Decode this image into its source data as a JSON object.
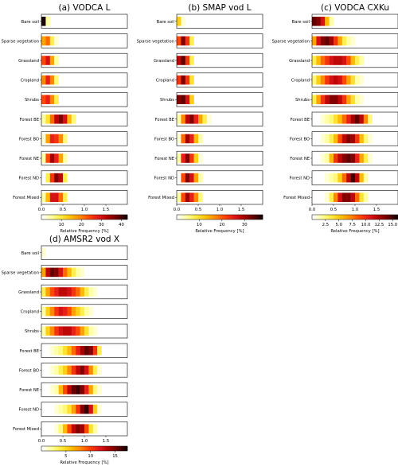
{
  "colorscale": [
    "#ffffff",
    "#ffff99",
    "#ffeb3b",
    "#ffc107",
    "#ff8c00",
    "#ff4500",
    "#e31a1c",
    "#b10000",
    "#6b0000",
    "#1a0000"
  ],
  "chart_data": [
    {
      "type": "heatmap",
      "title": "(a) VODCA L",
      "categories": [
        "Bare soil",
        "Sparse vegetation",
        "Grassland",
        "Cropland",
        "Shrubs",
        "Forest BE",
        "Forest BO",
        "Forest NE",
        "Forest ND",
        "Forest Mixed"
      ],
      "x": [
        0.05,
        0.15,
        0.25,
        0.35,
        0.45,
        0.55,
        0.65,
        0.75,
        0.85,
        0.95
      ],
      "xlim": [
        0,
        2
      ],
      "xticks": [
        "0.0",
        "0.5",
        "1.0",
        "1.5"
      ],
      "series": [
        {
          "values": [
            1.0,
            0.1,
            0.0,
            0.0,
            0.0,
            0.0,
            0.0,
            0.0,
            0.0,
            0.0
          ]
        },
        {
          "values": [
            0.4,
            0.5,
            0.2,
            0.05,
            0.0,
            0.0,
            0.0,
            0.0,
            0.0,
            0.0
          ]
        },
        {
          "values": [
            0.55,
            0.7,
            0.4,
            0.1,
            0.0,
            0.0,
            0.0,
            0.0,
            0.0,
            0.0
          ]
        },
        {
          "values": [
            0.45,
            0.65,
            0.45,
            0.15,
            0.0,
            0.0,
            0.0,
            0.0,
            0.0,
            0.0
          ]
        },
        {
          "values": [
            0.55,
            0.65,
            0.45,
            0.2,
            0.0,
            0.0,
            0.0,
            0.0,
            0.0,
            0.0
          ]
        },
        {
          "values": [
            0.1,
            0.25,
            0.5,
            0.75,
            0.85,
            0.7,
            0.35,
            0.15,
            0.0,
            0.0
          ]
        },
        {
          "values": [
            0.05,
            0.4,
            0.65,
            0.6,
            0.45,
            0.15,
            0.0,
            0.0,
            0.0,
            0.0
          ]
        },
        {
          "values": [
            0.1,
            0.55,
            0.8,
            0.65,
            0.4,
            0.1,
            0.0,
            0.0,
            0.0,
            0.0
          ]
        },
        {
          "values": [
            0.0,
            0.2,
            0.6,
            0.85,
            0.75,
            0.2,
            0.0,
            0.0,
            0.0,
            0.0
          ]
        },
        {
          "values": [
            0.1,
            0.35,
            0.7,
            0.7,
            0.5,
            0.2,
            0.0,
            0.0,
            0.0,
            0.0
          ]
        }
      ],
      "colorbar": {
        "label": "Relative Frequency [%]",
        "range": [
          0,
          43
        ],
        "ticks": [
          10,
          20,
          30,
          40
        ]
      }
    },
    {
      "type": "heatmap",
      "title": "(b) SMAP vod L",
      "categories": [
        "Bare soil",
        "Sparse vegetation",
        "Grassland",
        "Cropland",
        "Shrubs",
        "Forest BE",
        "Forest BO",
        "Forest NE",
        "Forest ND",
        "Forest Mixed"
      ],
      "x": [
        0.05,
        0.15,
        0.25,
        0.35,
        0.45,
        0.55,
        0.65,
        0.75,
        0.85,
        0.95
      ],
      "xlim": [
        0,
        2
      ],
      "xticks": [
        "0.0",
        "0.5",
        "1.0",
        "1.5"
      ],
      "series": [
        {
          "values": [
            0.3,
            0.05,
            0.0,
            0.0,
            0.0,
            0.0,
            0.0,
            0.0,
            0.0,
            0.0
          ]
        },
        {
          "values": [
            0.55,
            0.85,
            0.6,
            0.2,
            0.0,
            0.0,
            0.0,
            0.0,
            0.0,
            0.0
          ]
        },
        {
          "values": [
            0.75,
            0.9,
            0.6,
            0.2,
            0.0,
            0.0,
            0.0,
            0.0,
            0.0,
            0.0
          ]
        },
        {
          "values": [
            0.6,
            0.85,
            0.6,
            0.25,
            0.0,
            0.0,
            0.0,
            0.0,
            0.0,
            0.0
          ]
        },
        {
          "values": [
            0.85,
            0.9,
            0.7,
            0.3,
            0.0,
            0.0,
            0.0,
            0.0,
            0.0,
            0.0
          ]
        },
        {
          "values": [
            0.1,
            0.45,
            0.75,
            0.85,
            0.65,
            0.4,
            0.2,
            0.05,
            0.0,
            0.0
          ]
        },
        {
          "values": [
            0.05,
            0.5,
            0.8,
            0.65,
            0.35,
            0.1,
            0.0,
            0.0,
            0.0,
            0.0
          ]
        },
        {
          "values": [
            0.1,
            0.65,
            0.85,
            0.6,
            0.3,
            0.05,
            0.0,
            0.0,
            0.0,
            0.0
          ]
        },
        {
          "values": [
            0.0,
            0.55,
            0.85,
            0.7,
            0.4,
            0.1,
            0.0,
            0.0,
            0.0,
            0.0
          ]
        },
        {
          "values": [
            0.1,
            0.55,
            0.8,
            0.65,
            0.45,
            0.15,
            0.0,
            0.0,
            0.0,
            0.0
          ]
        }
      ],
      "colorbar": {
        "label": "Relative Frequency [%]",
        "range": [
          0,
          38
        ],
        "ticks": [
          10,
          20,
          30
        ]
      }
    },
    {
      "type": "heatmap",
      "title": "(c) VODCA CXKu",
      "categories": [
        "Bare soil",
        "Sparse vegetation",
        "Grassland",
        "Cropland",
        "Shrubs",
        "Forest BE",
        "Forest BO",
        "Forest NE",
        "Forest ND",
        "Forest Mixed"
      ],
      "x": [
        0.05,
        0.15,
        0.25,
        0.35,
        0.45,
        0.55,
        0.65,
        0.75,
        0.85,
        0.95,
        1.05,
        1.15,
        1.25,
        1.35,
        1.45
      ],
      "xlim": [
        0,
        2
      ],
      "xticks": [
        "0.0",
        "0.5",
        "1.0",
        "1.5"
      ],
      "series": [
        {
          "values": [
            0.9,
            0.85,
            0.7,
            0.35,
            0.1,
            0.0,
            0.0,
            0.0,
            0.0,
            0.0,
            0.0,
            0.0,
            0.0,
            0.0,
            0.0
          ]
        },
        {
          "values": [
            0.4,
            0.7,
            0.85,
            0.9,
            0.8,
            0.6,
            0.4,
            0.2,
            0.1,
            0.05,
            0.0,
            0.0,
            0.0,
            0.0,
            0.0
          ]
        },
        {
          "values": [
            0.2,
            0.35,
            0.5,
            0.6,
            0.7,
            0.75,
            0.75,
            0.7,
            0.55,
            0.35,
            0.2,
            0.1,
            0.0,
            0.0,
            0.0
          ]
        },
        {
          "values": [
            0.15,
            0.3,
            0.45,
            0.6,
            0.7,
            0.75,
            0.7,
            0.55,
            0.4,
            0.25,
            0.1,
            0.05,
            0.0,
            0.0,
            0.0
          ]
        },
        {
          "values": [
            0.2,
            0.4,
            0.6,
            0.75,
            0.85,
            0.85,
            0.75,
            0.6,
            0.4,
            0.25,
            0.1,
            0.05,
            0.0,
            0.0,
            0.0
          ]
        },
        {
          "values": [
            0.0,
            0.0,
            0.05,
            0.1,
            0.15,
            0.25,
            0.35,
            0.5,
            0.65,
            0.8,
            0.9,
            0.75,
            0.45,
            0.15,
            0.0
          ]
        },
        {
          "values": [
            0.0,
            0.0,
            0.05,
            0.1,
            0.2,
            0.35,
            0.55,
            0.75,
            0.85,
            0.8,
            0.6,
            0.35,
            0.15,
            0.05,
            0.0
          ]
        },
        {
          "values": [
            0.0,
            0.0,
            0.05,
            0.1,
            0.35,
            0.6,
            0.75,
            0.85,
            0.9,
            0.85,
            0.65,
            0.4,
            0.2,
            0.05,
            0.0
          ]
        },
        {
          "values": [
            0.0,
            0.0,
            0.0,
            0.05,
            0.1,
            0.15,
            0.3,
            0.5,
            0.75,
            0.95,
            0.75,
            0.35,
            0.1,
            0.0,
            0.0
          ]
        },
        {
          "values": [
            0.0,
            0.0,
            0.0,
            0.05,
            0.2,
            0.45,
            0.7,
            0.85,
            0.85,
            0.75,
            0.5,
            0.25,
            0.1,
            0.0,
            0.0
          ]
        }
      ],
      "colorbar": {
        "label": "Relative Frequency [%]",
        "range": [
          0,
          16
        ],
        "ticks": [
          "2.5",
          "5.0",
          "7.5",
          "10.0",
          "12.5",
          "15.0"
        ]
      }
    },
    {
      "type": "heatmap",
      "title": "(d) AMSR2 vod X",
      "categories": [
        "Bare soil",
        "Sparse vegetation",
        "Grassland",
        "Cropland",
        "Shrubs",
        "Forest BE",
        "Forest BO",
        "Forest NE",
        "Forest ND",
        "Forest Mixed"
      ],
      "x": [
        0.05,
        0.15,
        0.25,
        0.35,
        0.45,
        0.55,
        0.65,
        0.75,
        0.85,
        0.95,
        1.05,
        1.15,
        1.25,
        1.35,
        1.45
      ],
      "xlim": [
        0,
        2
      ],
      "xticks": [
        "0.0",
        "0.5",
        "1.0",
        "1.5"
      ],
      "series": [
        {
          "values": [
            0.05,
            0.0,
            0.0,
            0.0,
            0.0,
            0.0,
            0.0,
            0.0,
            0.0,
            0.0,
            0.0,
            0.0,
            0.0,
            0.0,
            0.0
          ]
        },
        {
          "values": [
            0.4,
            0.75,
            0.9,
            0.85,
            0.7,
            0.5,
            0.35,
            0.2,
            0.1,
            0.05,
            0.0,
            0.0,
            0.0,
            0.0,
            0.0
          ]
        },
        {
          "values": [
            0.2,
            0.4,
            0.55,
            0.65,
            0.75,
            0.75,
            0.7,
            0.6,
            0.5,
            0.35,
            0.2,
            0.1,
            0.05,
            0.0,
            0.0
          ]
        },
        {
          "values": [
            0.1,
            0.3,
            0.45,
            0.6,
            0.7,
            0.65,
            0.55,
            0.4,
            0.3,
            0.2,
            0.1,
            0.05,
            0.0,
            0.0,
            0.0
          ]
        },
        {
          "values": [
            0.1,
            0.3,
            0.45,
            0.6,
            0.7,
            0.75,
            0.75,
            0.65,
            0.55,
            0.4,
            0.25,
            0.1,
            0.05,
            0.0,
            0.0
          ]
        },
        {
          "values": [
            0.0,
            0.0,
            0.05,
            0.1,
            0.15,
            0.25,
            0.35,
            0.5,
            0.65,
            0.8,
            0.9,
            0.85,
            0.6,
            0.2,
            0.0
          ]
        },
        {
          "values": [
            0.0,
            0.0,
            0.05,
            0.1,
            0.2,
            0.3,
            0.45,
            0.6,
            0.75,
            0.85,
            0.7,
            0.45,
            0.2,
            0.05,
            0.0
          ]
        },
        {
          "values": [
            0.0,
            0.0,
            0.05,
            0.1,
            0.35,
            0.55,
            0.75,
            0.9,
            0.95,
            0.85,
            0.65,
            0.4,
            0.15,
            0.05,
            0.0
          ]
        },
        {
          "values": [
            0.0,
            0.0,
            0.0,
            0.05,
            0.1,
            0.15,
            0.25,
            0.4,
            0.6,
            0.85,
            0.95,
            0.7,
            0.3,
            0.05,
            0.0
          ]
        },
        {
          "values": [
            0.0,
            0.0,
            0.0,
            0.05,
            0.15,
            0.35,
            0.55,
            0.75,
            0.85,
            0.8,
            0.55,
            0.25,
            0.1,
            0.0,
            0.0
          ]
        }
      ],
      "colorbar": {
        "label": "Relative Frequency [%]",
        "range": [
          0,
          17.5
        ],
        "ticks": [
          5,
          10,
          15
        ]
      }
    }
  ]
}
